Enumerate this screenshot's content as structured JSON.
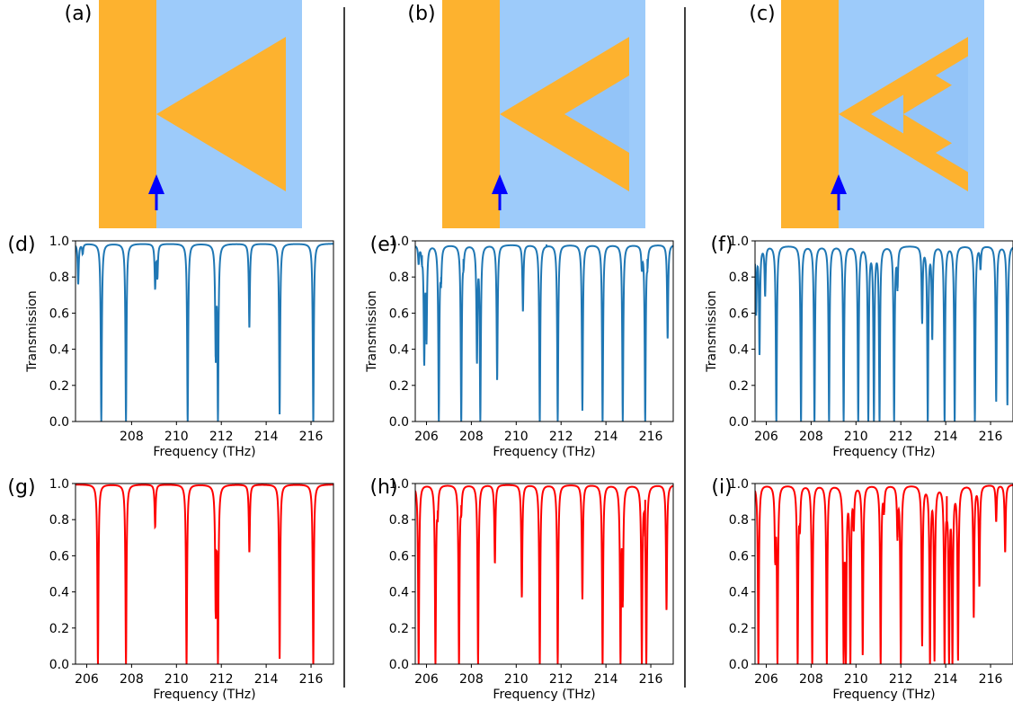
{
  "figure": {
    "colors": {
      "orange": "#FDB22F",
      "light_blue": "#9DCBFA",
      "inner_blue": "#93C4F8",
      "arrow": "#0000FF",
      "divider": "#000000",
      "sim_line": "#1F77B4",
      "model_line": "#FF0000"
    },
    "schematics": [
      {
        "label": "(a)",
        "fractal_order": 1
      },
      {
        "label": "(b)",
        "fractal_order": 2
      },
      {
        "label": "(c)",
        "fractal_order": 3
      }
    ]
  },
  "chart_data": [
    {
      "panel": "(d)",
      "type": "line",
      "color": "#1F77B4",
      "xlabel": "Frequency (THz)",
      "ylabel": "Transmission",
      "xlim": [
        205.5,
        217
      ],
      "ylim": [
        0,
        1
      ],
      "xticks": [
        "208",
        "210",
        "212",
        "214",
        "216"
      ],
      "yticks": [
        "0.0",
        "0.2",
        "0.4",
        "0.6",
        "0.8",
        "1.0"
      ],
      "baseline": 0.985,
      "dips": [
        [
          205.62,
          0.76
        ],
        [
          205.82,
          0.93
        ],
        [
          206.65,
          0.0
        ],
        [
          207.75,
          0.0
        ],
        [
          209.05,
          0.74
        ],
        [
          209.15,
          0.8
        ],
        [
          210.5,
          0.0
        ],
        [
          211.75,
          0.35
        ],
        [
          211.85,
          0.0
        ],
        [
          213.25,
          0.52
        ],
        [
          214.6,
          0.04
        ],
        [
          216.1,
          0.0
        ]
      ]
    },
    {
      "panel": "(e)",
      "type": "line",
      "color": "#1F77B4",
      "xlabel": "Frequency (THz)",
      "ylabel": "Transmission",
      "xlim": [
        205.5,
        217
      ],
      "ylim": [
        0,
        1
      ],
      "xticks": [
        "206",
        "208",
        "210",
        "212",
        "214",
        "216"
      ],
      "yticks": [
        "0.0",
        "0.2",
        "0.4",
        "0.6",
        "0.8",
        "1.0"
      ],
      "baseline": 0.98,
      "dips": [
        [
          205.65,
          0.88
        ],
        [
          205.8,
          0.92
        ],
        [
          205.9,
          0.32
        ],
        [
          206.0,
          0.45
        ],
        [
          206.55,
          0.0
        ],
        [
          206.65,
          0.8
        ],
        [
          207.55,
          0.0
        ],
        [
          207.65,
          0.9
        ],
        [
          208.25,
          0.33
        ],
        [
          208.4,
          0.0
        ],
        [
          209.15,
          0.23
        ],
        [
          210.3,
          0.61
        ],
        [
          211.05,
          0.0
        ],
        [
          211.35,
          0.98
        ],
        [
          211.85,
          0.0
        ],
        [
          212.95,
          0.06
        ],
        [
          213.85,
          0.0
        ],
        [
          214.75,
          0.0
        ],
        [
          215.6,
          0.86
        ],
        [
          215.75,
          0.0
        ],
        [
          215.85,
          0.9
        ],
        [
          216.75,
          0.46
        ]
      ]
    },
    {
      "panel": "(f)",
      "type": "line",
      "color": "#1F77B4",
      "xlabel": "Frequency (THz)",
      "ylabel": "Transmission",
      "xlim": [
        205.5,
        217
      ],
      "ylim": [
        0,
        1
      ],
      "xticks": [
        "206",
        "208",
        "210",
        "212",
        "214",
        "216"
      ],
      "yticks": [
        "0.0",
        "0.2",
        "0.4",
        "0.6",
        "0.8",
        "1.0"
      ],
      "baseline": 0.975,
      "dips": [
        [
          205.55,
          0.6
        ],
        [
          205.7,
          0.37
        ],
        [
          205.95,
          0.7
        ],
        [
          206.45,
          0.0
        ],
        [
          207.55,
          0.0
        ],
        [
          208.15,
          0.0
        ],
        [
          208.8,
          0.0
        ],
        [
          209.45,
          0.0
        ],
        [
          210.1,
          0.0
        ],
        [
          210.55,
          0.0
        ],
        [
          210.8,
          0.0
        ],
        [
          211.05,
          0.0
        ],
        [
          211.7,
          0.0
        ],
        [
          211.85,
          0.75
        ],
        [
          212.95,
          0.55
        ],
        [
          213.2,
          0.0
        ],
        [
          213.4,
          0.46
        ],
        [
          213.95,
          0.0
        ],
        [
          214.4,
          0.0
        ],
        [
          215.3,
          0.0
        ],
        [
          215.55,
          0.85
        ],
        [
          216.25,
          0.11
        ],
        [
          216.75,
          0.09
        ]
      ]
    },
    {
      "panel": "(g)",
      "type": "line",
      "color": "#FF0000",
      "xlabel": "Frequency (THz)",
      "ylabel": "",
      "xlim": [
        205.5,
        217
      ],
      "ylim": [
        0,
        1
      ],
      "xticks": [
        "206",
        "208",
        "210",
        "212",
        "214",
        "216"
      ],
      "yticks": [
        "0.0",
        "0.2",
        "0.4",
        "0.6",
        "0.8",
        "1.0"
      ],
      "baseline": 0.995,
      "dips": [
        [
          206.5,
          0.0
        ],
        [
          207.75,
          0.0
        ],
        [
          209.05,
          0.76
        ],
        [
          210.45,
          0.0
        ],
        [
          211.75,
          0.27
        ],
        [
          211.85,
          0.0
        ],
        [
          213.25,
          0.62
        ],
        [
          214.6,
          0.03
        ],
        [
          216.1,
          0.0
        ]
      ]
    },
    {
      "panel": "(h)",
      "type": "line",
      "color": "#FF0000",
      "xlabel": "Frequency (THz)",
      "ylabel": "",
      "xlim": [
        205.5,
        217
      ],
      "ylim": [
        0,
        1
      ],
      "xticks": [
        "206",
        "208",
        "210",
        "212",
        "214",
        "216"
      ],
      "yticks": [
        "0.0",
        "0.2",
        "0.4",
        "0.6",
        "0.8",
        "1.0"
      ],
      "baseline": 0.995,
      "dips": [
        [
          205.65,
          0.0
        ],
        [
          206.4,
          0.0
        ],
        [
          206.5,
          0.85
        ],
        [
          207.45,
          0.0
        ],
        [
          207.55,
          0.88
        ],
        [
          208.3,
          0.0
        ],
        [
          209.05,
          0.56
        ],
        [
          210.25,
          0.37
        ],
        [
          211.05,
          0.0
        ],
        [
          211.85,
          0.0
        ],
        [
          212.95,
          0.36
        ],
        [
          213.85,
          0.0
        ],
        [
          214.65,
          0.0
        ],
        [
          214.75,
          0.34
        ],
        [
          215.6,
          0.0
        ],
        [
          215.75,
          0.91
        ],
        [
          215.8,
          0.0
        ],
        [
          216.7,
          0.3
        ]
      ]
    },
    {
      "panel": "(i)",
      "type": "line",
      "color": "#FF0000",
      "xlabel": "Frequency (THz)",
      "ylabel": "",
      "xlim": [
        205.5,
        217
      ],
      "ylim": [
        0,
        1
      ],
      "xticks": [
        "206",
        "208",
        "210",
        "212",
        "214",
        "216"
      ],
      "yticks": [
        "0.0",
        "0.2",
        "0.4",
        "0.6",
        "0.8",
        "1.0"
      ],
      "baseline": 0.995,
      "dips": [
        [
          205.65,
          0.0
        ],
        [
          206.4,
          0.59
        ],
        [
          206.5,
          0.0
        ],
        [
          207.4,
          0.0
        ],
        [
          207.5,
          0.78
        ],
        [
          208.05,
          0.0
        ],
        [
          208.7,
          0.0
        ],
        [
          209.45,
          0.0
        ],
        [
          209.55,
          0.0
        ],
        [
          209.75,
          0.0
        ],
        [
          209.9,
          0.77
        ],
        [
          210.3,
          0.05
        ],
        [
          211.1,
          0.0
        ],
        [
          211.25,
          0.86
        ],
        [
          211.85,
          0.71
        ],
        [
          212.0,
          0.0
        ],
        [
          212.95,
          0.1
        ],
        [
          213.3,
          0.0
        ],
        [
          213.5,
          0.02
        ],
        [
          213.95,
          0.0
        ],
        [
          214.05,
          0.93
        ],
        [
          214.15,
          0.0
        ],
        [
          214.3,
          0.0
        ],
        [
          214.55,
          0.02
        ],
        [
          215.25,
          0.26
        ],
        [
          215.5,
          0.43
        ],
        [
          216.25,
          0.79
        ],
        [
          216.65,
          0.62
        ]
      ]
    }
  ]
}
